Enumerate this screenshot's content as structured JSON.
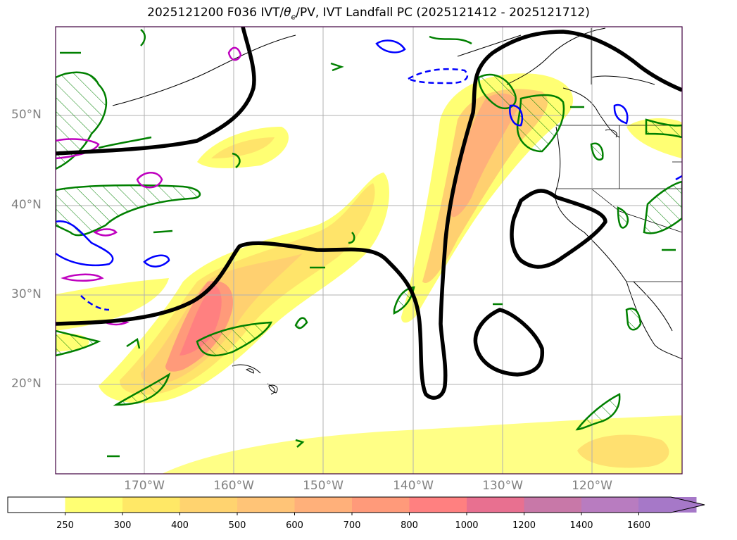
{
  "title": {
    "prefix": "2025121200 F036 IVT/",
    "theta": "θ",
    "theta_sub": "e",
    "suffix": "/PV, IVT Landfall PC (2025121412 - 2025121712)"
  },
  "map": {
    "lat_labels": [
      "50°N",
      "40°N",
      "30°N",
      "20°N"
    ],
    "lon_labels": [
      "170°W",
      "160°W",
      "150°W",
      "140°W",
      "130°W",
      "120°W"
    ],
    "extent": {
      "lon": [
        -180,
        -110
      ],
      "lat": [
        10,
        60
      ]
    },
    "colors": {
      "pv_contour": "#008000",
      "theta_e_contour": "#0000ff",
      "magenta_contour": "#bf00bf",
      "landfall_pc": "#000000",
      "coastline": "#000000",
      "grid": "#b0b0b0"
    }
  },
  "colorbar": {
    "levels": [
      "250",
      "300",
      "400",
      "500",
      "600",
      "700",
      "800",
      "1000",
      "1200",
      "1400",
      "1600"
    ],
    "colors": [
      "#ffffff",
      "#ffff73",
      "#ffe866",
      "#ffd36f",
      "#ffc477",
      "#ffb07a",
      "#ff9a7a",
      "#ff8080",
      "#e87090",
      "#c878a8",
      "#b87cc0",
      "#a678c8"
    ],
    "extend": "max"
  }
}
